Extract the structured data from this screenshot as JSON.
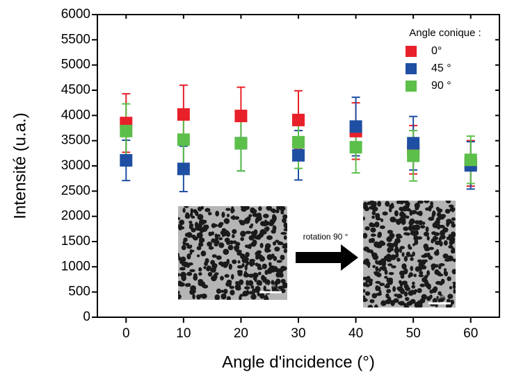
{
  "chart_data": {
    "type": "scatter",
    "x_label": "Angle d'incidence (°)",
    "y_label": "Intensité (u.a.)",
    "x": [
      0,
      10,
      20,
      30,
      40,
      50,
      60
    ],
    "series": [
      {
        "name": "0°",
        "color": "#e8202a",
        "values": [
          3850,
          4020,
          3990,
          3910,
          3690,
          3320,
          3050
        ],
        "errors": [
          580,
          580,
          570,
          580,
          560,
          480,
          450
        ]
      },
      {
        "name": "45 °",
        "color": "#1f4fa3",
        "values": [
          3110,
          2940,
          3450,
          3210,
          3780,
          3450,
          3010
        ],
        "errors": [
          400,
          450,
          550,
          490,
          580,
          530,
          470
        ]
      },
      {
        "name": "90 °",
        "color": "#5cbf4a",
        "values": [
          3690,
          3520,
          3450,
          3470,
          3370,
          3200,
          3120
        ],
        "errors": [
          540,
          520,
          550,
          520,
          510,
          500,
          470
        ]
      }
    ],
    "legend_title": "Angle conique :",
    "legend_position": "upper right",
    "xlim": [
      -5,
      65
    ],
    "xticks": [
      0,
      10,
      20,
      30,
      40,
      50,
      60
    ],
    "ylim": [
      0,
      6000
    ],
    "yticks": [
      0,
      500,
      1000,
      1500,
      2000,
      2500,
      3000,
      3500,
      4000,
      4500,
      5000,
      5500,
      6000
    ],
    "annotations": {
      "rotation": "rotation 90 °",
      "scale_bar_1": "1 µm",
      "scale_bar_2": "1 µm"
    }
  }
}
